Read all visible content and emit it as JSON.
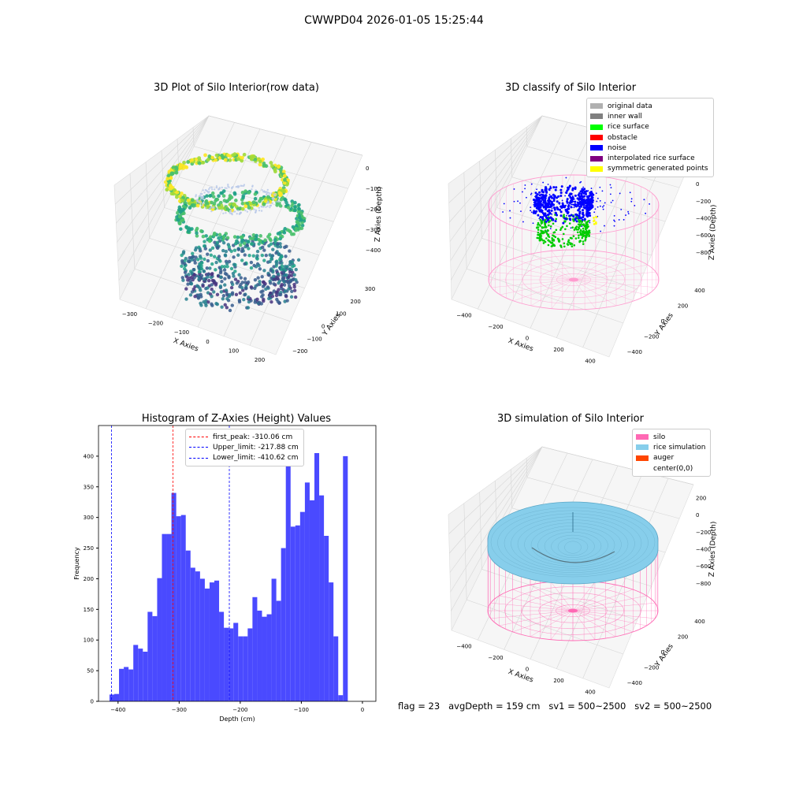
{
  "suptitle": "CWWPD04 2026-01-05 15:25:44",
  "colors": {
    "hist_bar": "#4a4aff",
    "peak_line": "#ff0000",
    "limit_line": "#0000ff",
    "silo": "#ff69b4",
    "rice": "#87ceeb",
    "auger": "#ff4500"
  },
  "chart_data": [
    {
      "type": "scatter",
      "title": "3D Plot of Silo Interior(row data)",
      "xlabel": "X Axies",
      "ylabel": "Y Axies",
      "zlabel": "Z Axies (Depth)",
      "x_ticks": [
        "−300",
        "−200",
        "−100",
        "0",
        "100",
        "200"
      ],
      "y_ticks": [
        "−200",
        "−100",
        "0",
        "100",
        "200",
        "300"
      ],
      "z_ticks": [
        "0",
        "−100",
        "−200",
        "−300",
        "−400"
      ],
      "xlim": [
        -340,
        260
      ],
      "ylim": [
        -250,
        320
      ],
      "zlim": [
        -430,
        10
      ],
      "colormap": "viridis"
    },
    {
      "type": "scatter",
      "title": "3D classify of Silo Interior",
      "xlabel": "X Axies",
      "ylabel": "Y Axies",
      "zlabel": "Z Axies (Depth)",
      "x_ticks": [
        "−400",
        "−200",
        "0",
        "200",
        "400"
      ],
      "y_ticks": [
        "−400",
        "−200",
        "0",
        "200",
        "400"
      ],
      "z_ticks": [
        "200",
        "0",
        "−200",
        "−400",
        "−600",
        "−800"
      ],
      "legend": [
        {
          "label": "original data",
          "color": "#b0b0b0"
        },
        {
          "label": "inner wall",
          "color": "#808080"
        },
        {
          "label": "rice surface",
          "color": "#00ff00"
        },
        {
          "label": "obstacle",
          "color": "#ff0000"
        },
        {
          "label": "noise",
          "color": "#0000ff"
        },
        {
          "label": "interpolated rice surface",
          "color": "#800080"
        },
        {
          "label": "symmetric generated points",
          "color": "#ffff00"
        }
      ]
    },
    {
      "type": "bar",
      "title": "Histogram of Z-Axies (Height) Values",
      "xlabel": "Depth (cm)",
      "ylabel": "Frequency",
      "xlim": [
        -432,
        22
      ],
      "ylim": [
        0,
        450
      ],
      "x_ticks": [
        -400,
        -300,
        -200,
        -100,
        0
      ],
      "y_ticks": [
        0,
        50,
        100,
        150,
        200,
        250,
        300,
        350,
        400
      ],
      "bin_start": -414.0,
      "bin_width": 7.8,
      "values": [
        11,
        12,
        53,
        56,
        52,
        92,
        86,
        81,
        146,
        139,
        201,
        273,
        273,
        340,
        302,
        304,
        246,
        218,
        212,
        200,
        184,
        194,
        197,
        146,
        120,
        119,
        128,
        106,
        106,
        119,
        170,
        148,
        138,
        142,
        200,
        164,
        250,
        426,
        285,
        287,
        309,
        357,
        328,
        405,
        336,
        270,
        194,
        106,
        10,
        400
      ],
      "vlines": [
        {
          "x": -310.06,
          "label": "first_peak: -310.06 cm",
          "color": "#ff0000"
        },
        {
          "x": -217.88,
          "label": "Upper_limit: -217.88 cm",
          "color": "#0000ff"
        },
        {
          "x": -410.62,
          "label": "Lower_limit: -410.62 cm",
          "color": "#0000ff"
        }
      ]
    },
    {
      "type": "area",
      "title": "3D simulation of Silo Interior",
      "xlabel": "X Axies",
      "ylabel": "Y Axies",
      "zlabel": "Z Axies (Depth)",
      "x_ticks": [
        "−400",
        "−200",
        "0",
        "200",
        "400"
      ],
      "y_ticks": [
        "−400",
        "−200",
        "0",
        "200",
        "400"
      ],
      "z_ticks": [
        "200",
        "0",
        "−200",
        "−400",
        "−600",
        "−800"
      ],
      "legend": [
        {
          "label": "silo",
          "color": "#ff69b4"
        },
        {
          "label": "rice simulation",
          "color": "#87ceeb"
        },
        {
          "label": "auger",
          "color": "#ff4500"
        },
        {
          "label": "center(0,0)",
          "color": "#ffffff"
        }
      ]
    }
  ],
  "status": "flag = 23   avgDepth = 159 cm   sv1 = 500~2500   sv2 = 500~2500"
}
